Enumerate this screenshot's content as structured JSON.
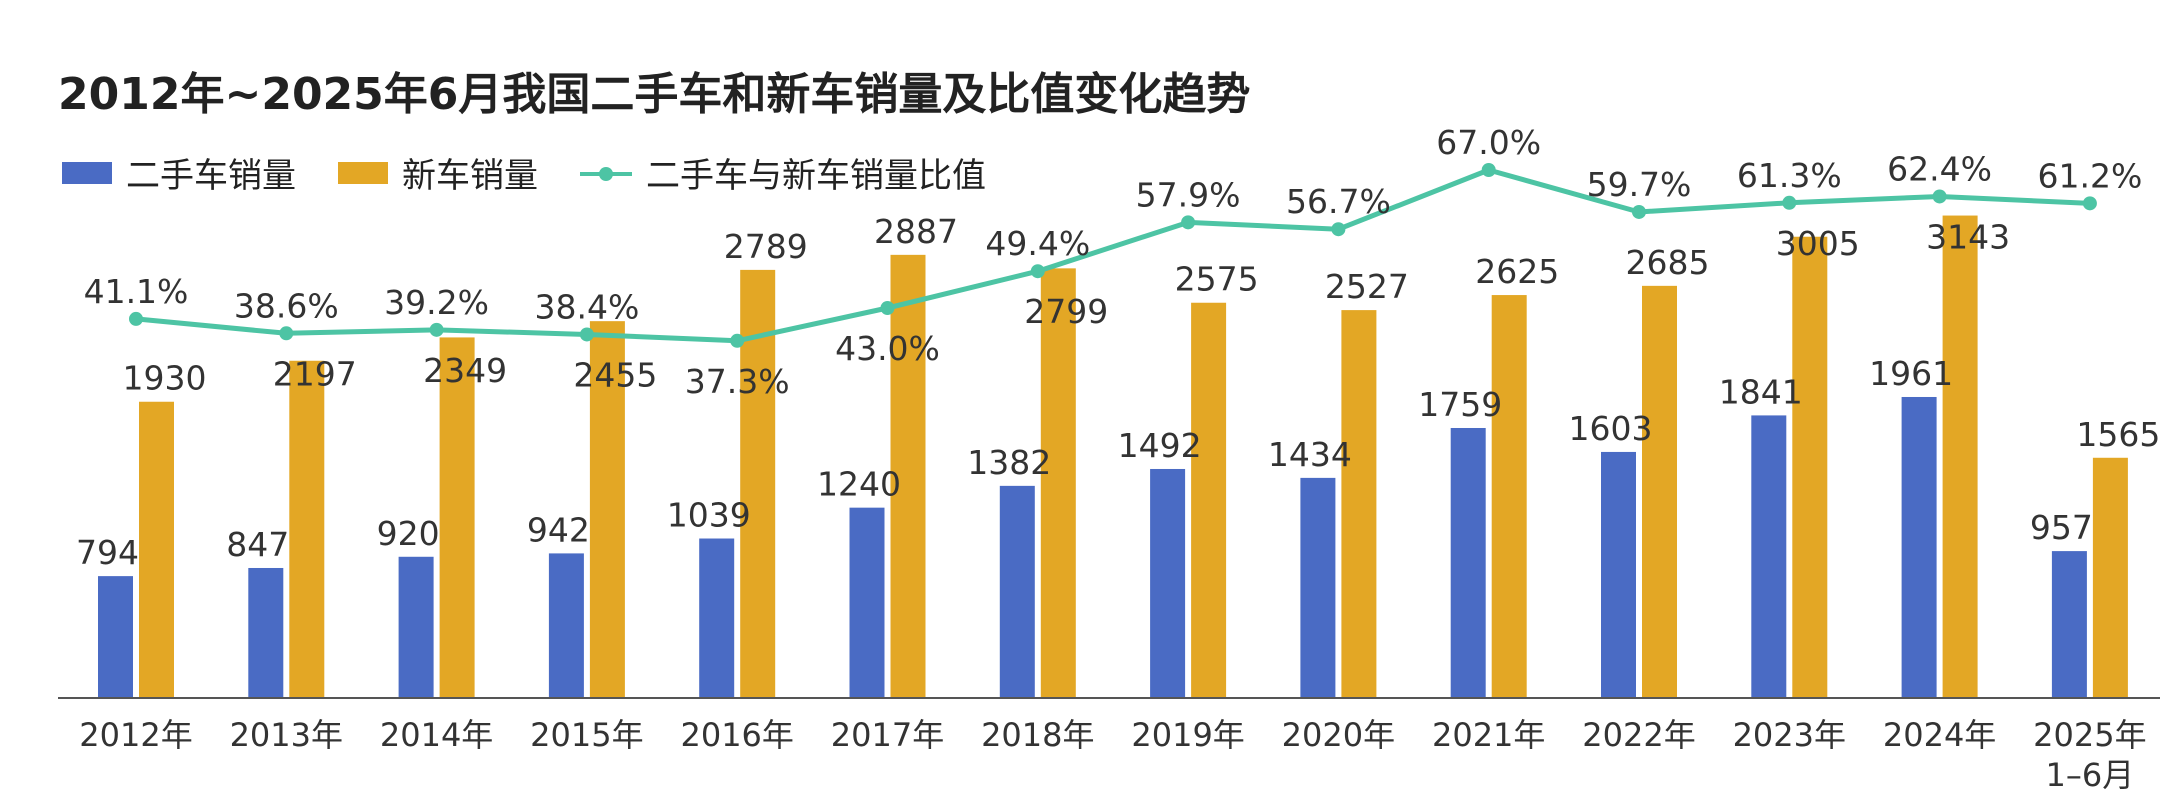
{
  "title": "2012年~2025年6月我国二手车和新车销量及比值变化趋势",
  "colors": {
    "used_cars": "#4a6bc4",
    "new_cars": "#e3a725",
    "ratio": "#4dc4a4",
    "axis": "#555555"
  },
  "chart_data": {
    "type": "bar",
    "title": "2012年~2025年6月我国二手车和新车销量及比值变化趋势",
    "categories": [
      "2012年",
      "2013年",
      "2014年",
      "2015年",
      "2016年",
      "2017年",
      "2018年",
      "2019年",
      "2020年",
      "2021年",
      "2022年",
      "2023年",
      "2024年",
      "2025年\n1–6月"
    ],
    "series": [
      {
        "name": "二手车销量",
        "type": "bar",
        "values": [
          794,
          847,
          920,
          942,
          1039,
          1240,
          1382,
          1492,
          1434,
          1759,
          1603,
          1841,
          1961,
          957
        ]
      },
      {
        "name": "新车销量",
        "type": "bar",
        "values": [
          1930,
          2197,
          2349,
          2455,
          2789,
          2887,
          2799,
          2575,
          2527,
          2625,
          2685,
          3005,
          3143,
          1565
        ]
      },
      {
        "name": "二手车与新车销量比值",
        "type": "line",
        "values": [
          41.1,
          38.6,
          39.2,
          38.4,
          37.3,
          43.0,
          49.4,
          57.9,
          56.7,
          67.0,
          59.7,
          61.3,
          62.4,
          61.2
        ],
        "labels": [
          "41.1%",
          "38.6%",
          "39.2%",
          "38.4%",
          "37.3%",
          "43.0%",
          "49.4%",
          "57.9%",
          "56.7%",
          "67.0%",
          "59.7%",
          "61.3%",
          "62.4%",
          "61.2%"
        ]
      }
    ],
    "legend_position": "top-left",
    "grid": false,
    "ylim_bars": [
      0,
      3300
    ],
    "ylim_ratio": [
      0,
      75
    ]
  }
}
